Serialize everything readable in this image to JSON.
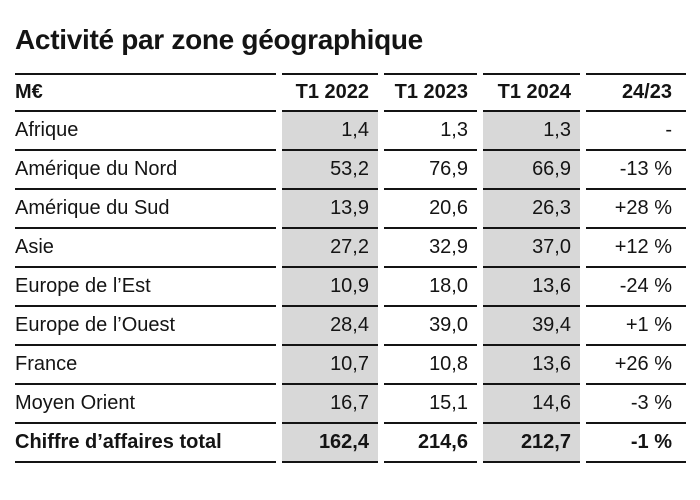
{
  "title": "Activité par zone géographique",
  "table": {
    "headers": [
      "M€",
      "T1 2022",
      "T1 2023",
      "T1 2024",
      "24/23"
    ],
    "rows": [
      [
        "Afrique",
        "1,4",
        "1,3",
        "1,3",
        "-"
      ],
      [
        "Amérique du Nord",
        "53,2",
        "76,9",
        "66,9",
        "-13 %"
      ],
      [
        "Amérique du Sud",
        "13,9",
        "20,6",
        "26,3",
        "+28 %"
      ],
      [
        "Asie",
        "27,2",
        "32,9",
        "37,0",
        "+12 %"
      ],
      [
        "Europe de l’Est",
        "10,9",
        "18,0",
        "13,6",
        "-24 %"
      ],
      [
        "Europe de l’Ouest",
        "28,4",
        "39,0",
        "39,4",
        "+1 %"
      ],
      [
        "France",
        "10,7",
        "10,8",
        "13,6",
        "+26 %"
      ],
      [
        "Moyen Orient",
        "16,7",
        "15,1",
        "14,6",
        "-3 %"
      ]
    ],
    "total": [
      "Chiffre d’affaires total",
      "162,4",
      "214,6",
      "212,7",
      "-1 %"
    ]
  },
  "chart_data": {
    "type": "table",
    "title": "Activité par zone géographique",
    "unit": "M€",
    "columns": [
      "M€",
      "T1 2022",
      "T1 2023",
      "T1 2024",
      "24/23"
    ],
    "categories": [
      "Afrique",
      "Amérique du Nord",
      "Amérique du Sud",
      "Asie",
      "Europe de l’Est",
      "Europe de l’Ouest",
      "France",
      "Moyen Orient"
    ],
    "series": [
      {
        "name": "T1 2022",
        "values": [
          1.4,
          53.2,
          13.9,
          27.2,
          10.9,
          28.4,
          10.7,
          16.7
        ],
        "total": 162.4
      },
      {
        "name": "T1 2023",
        "values": [
          1.3,
          76.9,
          20.6,
          32.9,
          18.0,
          39.0,
          10.8,
          15.1
        ],
        "total": 214.6
      },
      {
        "name": "T1 2024",
        "values": [
          1.3,
          66.9,
          26.3,
          37.0,
          13.6,
          39.4,
          13.6,
          14.6
        ],
        "total": 212.7
      }
    ],
    "variation_24_23": [
      "-",
      "-13 %",
      "+28 %",
      "+12 %",
      "-24 %",
      "+1 %",
      "+26 %",
      "-3 %"
    ],
    "variation_24_23_total": "-1 %",
    "layout": {
      "shaded_columns": [
        "T1 2022",
        "T1 2024"
      ],
      "total_row_label": "Chiffre d’affaires total"
    }
  },
  "colors": {
    "shaded_column": "#d8d8d8",
    "rule": "#141414",
    "text": "#141414",
    "background": "#ffffff"
  }
}
